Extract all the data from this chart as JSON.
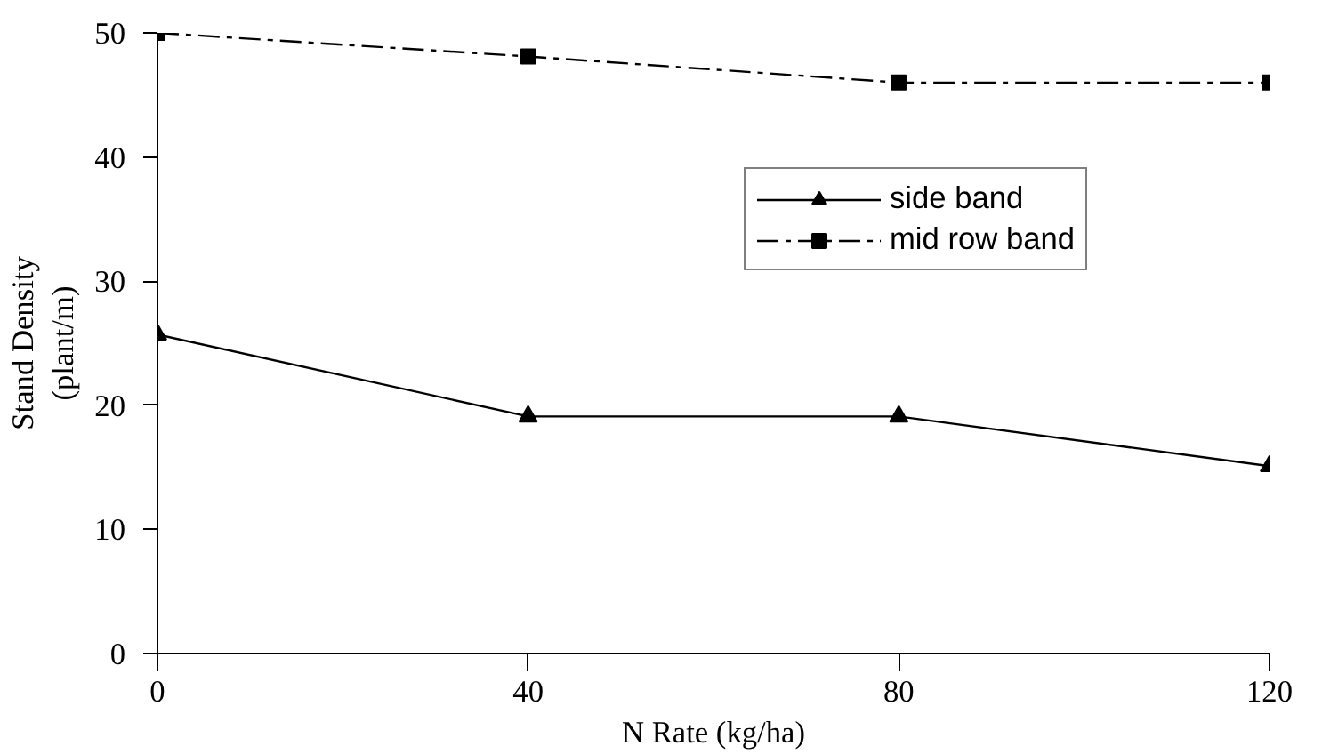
{
  "chart_data": {
    "type": "line",
    "xlabel": "N Rate (kg/ha)",
    "ylabel": "Stand Density\n(plant/m)",
    "x": [
      0,
      40,
      80,
      120
    ],
    "xlim": [
      0,
      120
    ],
    "xticks": [
      0,
      40,
      80,
      120
    ],
    "ylim": [
      0,
      50
    ],
    "yticks": [
      0,
      10,
      20,
      30,
      40,
      50
    ],
    "series": [
      {
        "name": "side band",
        "color": "#000000",
        "values": [
          25.7,
          19.1,
          19.1,
          15.1
        ],
        "marker": "triangle",
        "line_style": "solid"
      },
      {
        "name": "mid row band",
        "color": "#000000",
        "values": [
          50.0,
          48.1,
          46.0,
          46.0
        ],
        "marker": "square",
        "line_style": "dashed"
      }
    ],
    "grid": false,
    "legend": "top right"
  }
}
